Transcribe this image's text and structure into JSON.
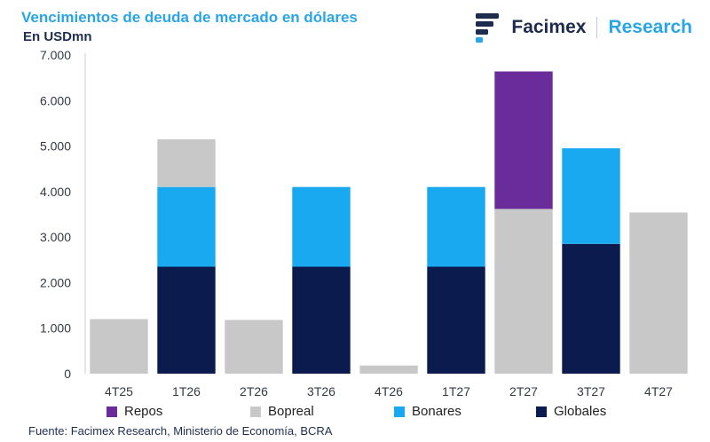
{
  "header": {
    "title": "Vencimientos de deuda de mercado en dólares",
    "subtitle": "En USDmn"
  },
  "brand": {
    "name": "Facimex",
    "section": "Research"
  },
  "source": "Fuente: Facimex Research, Ministerio de Economía, BCRA",
  "colors": {
    "Repos": "#6a2c9a",
    "Bopreal": "#c8c8c8",
    "Bonares": "#18a9f0",
    "Globales": "#0c1b4d",
    "title": "#2aa5e6",
    "brand_dark": "#1d2b4f"
  },
  "chart_data": {
    "type": "bar",
    "stacked": true,
    "title": "Vencimientos de deuda de mercado en dólares",
    "ylabel": "En USDmn",
    "xlabel": "",
    "categories": [
      "4T25",
      "1T26",
      "2T26",
      "3T26",
      "4T26",
      "1T27",
      "2T27",
      "3T27",
      "4T27"
    ],
    "series": [
      {
        "name": "Globales",
        "values": [
          0,
          2350,
          0,
          2350,
          0,
          2350,
          0,
          2850,
          0
        ]
      },
      {
        "name": "Bonares",
        "values": [
          0,
          1750,
          0,
          1750,
          0,
          1750,
          0,
          2100,
          0
        ]
      },
      {
        "name": "Bopreal",
        "values": [
          1200,
          1050,
          1180,
          0,
          180,
          0,
          3620,
          0,
          3540
        ]
      },
      {
        "name": "Repos",
        "values": [
          0,
          0,
          0,
          0,
          0,
          0,
          3020,
          0,
          0
        ]
      }
    ],
    "yticks": [
      "0",
      "1.000",
      "2.000",
      "3.000",
      "4.000",
      "5.000",
      "6.000",
      "7.000"
    ],
    "ytick_values": [
      0,
      1000,
      2000,
      3000,
      4000,
      5000,
      6000,
      7000
    ],
    "ylim": [
      0,
      7000
    ],
    "grid": false,
    "legend": {
      "position": "bottom",
      "order": [
        "Repos",
        "Bopreal",
        "Bonares",
        "Globales"
      ]
    }
  }
}
